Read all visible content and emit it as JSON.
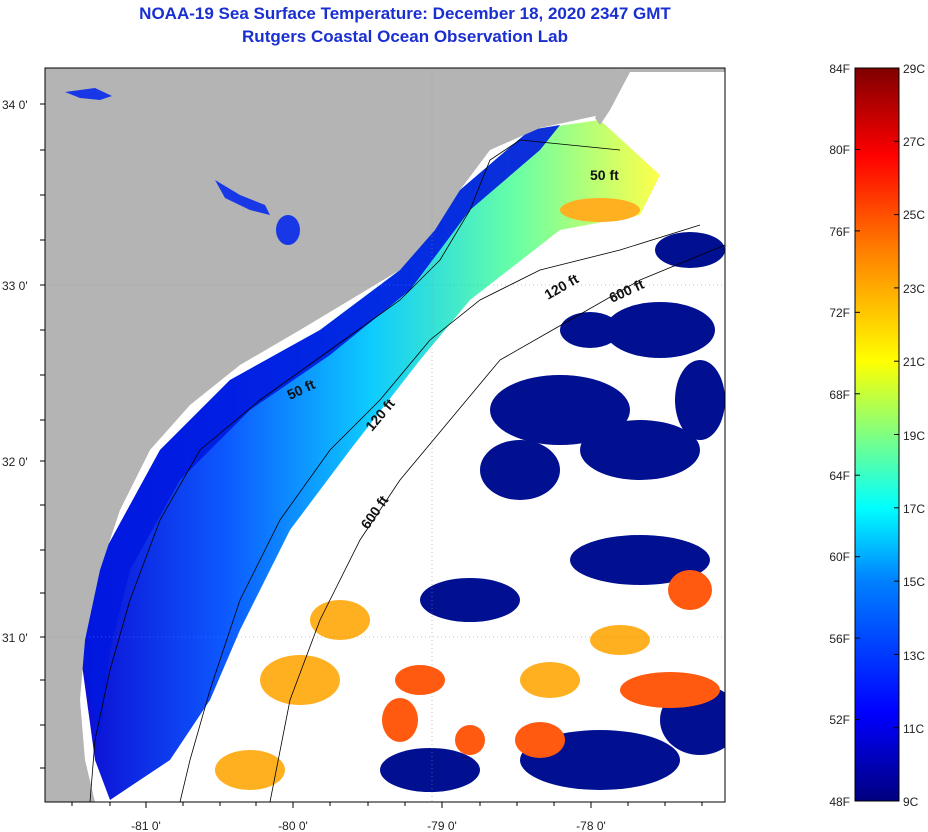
{
  "header": {
    "title": "NOAA-19 Sea Surface Temperature:  December 18, 2020 2347 GMT",
    "subtitle": "Rutgers Coastal Ocean Observation Lab"
  },
  "map": {
    "lat_ticks": [
      "34 0'",
      "33 0'",
      "32 0'",
      "31 0'"
    ],
    "lon_ticks": [
      "-81 0'",
      "-80 0'",
      "-79 0'",
      "-78 0'"
    ],
    "contour_labels": [
      "50 ft",
      "120 ft",
      "600 ft",
      "50 ft",
      "120 ft",
      "600 ft"
    ],
    "colors": {
      "land": "#b4b4b4",
      "frame": "#000000",
      "contour": "#000000"
    }
  },
  "colorbar": {
    "fahrenheit": [
      "84F",
      "80F",
      "76F",
      "72F",
      "68F",
      "64F",
      "60F",
      "56F",
      "52F",
      "48F"
    ],
    "celsius": [
      "29C",
      "27C",
      "25C",
      "23C",
      "21C",
      "19C",
      "17C",
      "15C",
      "13C",
      "11C",
      "9C"
    ],
    "palette": [
      "#00007f",
      "#0000ff",
      "#0080ff",
      "#00ffff",
      "#80ff80",
      "#ffff00",
      "#ff8000",
      "#ff0000",
      "#7f0000"
    ]
  }
}
